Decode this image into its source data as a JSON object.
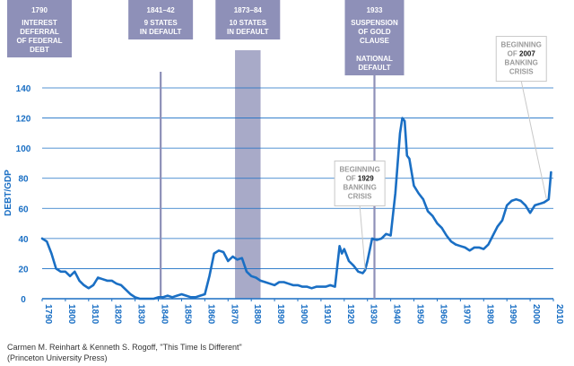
{
  "chart_data": {
    "type": "line",
    "ylabel": "DEBT/GDP",
    "xlim": [
      1790,
      2010
    ],
    "ylim": [
      0,
      140
    ],
    "yticks": [
      0,
      20,
      40,
      60,
      80,
      100,
      120,
      140
    ],
    "xticks": [
      1790,
      1800,
      1810,
      1820,
      1830,
      1840,
      1850,
      1860,
      1870,
      1880,
      1890,
      1900,
      1910,
      1920,
      1930,
      1940,
      1950,
      1960,
      1970,
      1980,
      1990,
      2000,
      2010
    ],
    "grid": "horizontal",
    "colors": {
      "line": "#1a6fc4",
      "grid": "#1a6fc4",
      "event": "#8e90b8",
      "shade": "#a8aac8"
    },
    "series": [
      {
        "x": [
          1790,
          1792,
          1794,
          1796,
          1798,
          1800,
          1802,
          1804,
          1806,
          1808,
          1810,
          1812,
          1814,
          1816,
          1818,
          1820,
          1822,
          1824,
          1826,
          1828,
          1830,
          1832,
          1834,
          1836,
          1838,
          1840,
          1842,
          1844,
          1846,
          1848,
          1850,
          1852,
          1854,
          1856,
          1858,
          1860,
          1862,
          1864,
          1866,
          1868,
          1870,
          1872,
          1874,
          1876,
          1878,
          1880,
          1882,
          1884,
          1886,
          1888,
          1890,
          1892,
          1894,
          1896,
          1898,
          1900,
          1902,
          1904,
          1906,
          1908,
          1910,
          1912,
          1914,
          1916,
          1918,
          1919,
          1920,
          1922,
          1924,
          1926,
          1928,
          1929,
          1930,
          1932,
          1934,
          1936,
          1938,
          1940,
          1942,
          1944,
          1945,
          1946,
          1947,
          1948,
          1950,
          1952,
          1954,
          1956,
          1958,
          1960,
          1962,
          1964,
          1966,
          1968,
          1970,
          1972,
          1974,
          1976,
          1978,
          1980,
          1982,
          1984,
          1986,
          1988,
          1990,
          1992,
          1994,
          1996,
          1998,
          2000,
          2002,
          2004,
          2006,
          2008,
          2009
        ],
        "y": [
          40,
          38,
          30,
          20,
          18,
          18,
          15,
          18,
          12,
          9,
          7,
          9,
          14,
          13,
          12,
          12,
          10,
          9,
          6,
          3,
          1,
          0,
          0,
          0,
          0,
          1,
          1,
          2,
          1,
          2,
          3,
          2,
          1,
          1,
          2,
          3,
          15,
          30,
          32,
          31,
          25,
          28,
          26,
          27,
          18,
          15,
          14,
          12,
          11,
          10,
          9,
          11,
          11,
          10,
          9,
          9,
          8,
          8,
          7,
          8,
          8,
          8,
          9,
          8,
          35,
          30,
          33,
          25,
          22,
          18,
          17,
          19,
          25,
          40,
          39,
          40,
          43,
          42,
          70,
          110,
          120,
          118,
          95,
          93,
          75,
          70,
          66,
          58,
          55,
          50,
          47,
          42,
          38,
          36,
          35,
          34,
          32,
          34,
          34,
          33,
          36,
          42,
          48,
          52,
          62,
          65,
          66,
          65,
          62,
          57,
          62,
          63,
          64,
          66,
          84
        ]
      }
    ],
    "events": [
      {
        "year": 1790,
        "label": [
          "1790"
        ],
        "caption": [
          "INTEREST",
          "DEFERRAL",
          "OF FEDERAL",
          "DEBT"
        ]
      },
      {
        "year": 1841,
        "label": [
          "1841–42"
        ],
        "caption": [
          "9 STATES",
          "IN DEFAULT"
        ]
      },
      {
        "start": 1873,
        "end": 1884,
        "label": [
          "1873–84"
        ],
        "caption": [
          "10 STATES",
          "IN DEFAULT"
        ]
      },
      {
        "year": 1933,
        "label": [
          "1933"
        ],
        "caption": [
          "SUSPENSION",
          "OF GOLD",
          "CLAUSE",
          "",
          "NATIONAL",
          "DEFAULT"
        ]
      }
    ],
    "annotations": [
      {
        "lines": [
          "BEGINNING",
          "OF 1929",
          "BANKING",
          "CRISIS"
        ],
        "highlight": "1929",
        "x": 1929,
        "y": 17
      },
      {
        "lines": [
          "BEGINNING",
          "OF 2007",
          "BANKING",
          "CRISIS"
        ],
        "highlight": "2007",
        "x": 2007,
        "y": 64
      }
    ]
  },
  "source": {
    "line1": "Carmen M. Reinhart & Kenneth S. Rogoff, \"This Time Is Different\"",
    "line2": "(Princeton University Press)"
  }
}
